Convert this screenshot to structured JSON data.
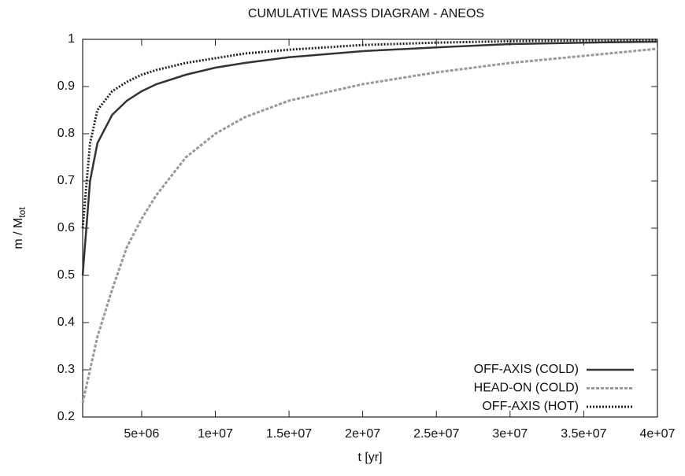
{
  "chart_data": {
    "type": "line",
    "title": "CUMULATIVE MASS DIAGRAM - ANEOS",
    "xlabel": "t [yr]",
    "ylabel": {
      "text": "m / M",
      "subscript": "tot"
    },
    "x": [
      1000000,
      1500000,
      2000000,
      3000000,
      4000000,
      5000000,
      6000000,
      8000000,
      10000000,
      12000000,
      15000000,
      20000000,
      25000000,
      30000000,
      35000000,
      40000000
    ],
    "series": [
      {
        "name": "OFF-AXIS (COLD)",
        "color": "#333333",
        "dash": "solid",
        "values": [
          0.5,
          0.7,
          0.78,
          0.84,
          0.87,
          0.89,
          0.905,
          0.925,
          0.94,
          0.95,
          0.962,
          0.975,
          0.983,
          0.99,
          0.993,
          0.995
        ]
      },
      {
        "name": "HEAD-ON (COLD)",
        "color": "#999999",
        "dash": "dashed",
        "values": [
          0.23,
          0.3,
          0.37,
          0.47,
          0.56,
          0.62,
          0.67,
          0.75,
          0.8,
          0.835,
          0.87,
          0.905,
          0.93,
          0.95,
          0.965,
          0.98
        ]
      },
      {
        "name": "OFF-AXIS (HOT)",
        "color": "#222222",
        "dash": "dotted",
        "values": [
          0.6,
          0.78,
          0.85,
          0.89,
          0.91,
          0.925,
          0.935,
          0.95,
          0.96,
          0.97,
          0.978,
          0.988,
          0.993,
          0.996,
          0.998,
          0.999
        ]
      }
    ],
    "xlim": [
      1000000,
      40000000
    ],
    "xticks": [
      {
        "value": 5000000,
        "label": "5e+06"
      },
      {
        "value": 10000000,
        "label": "1e+07"
      },
      {
        "value": 15000000,
        "label": "1.5e+07"
      },
      {
        "value": 20000000,
        "label": "2e+07"
      },
      {
        "value": 25000000,
        "label": "2.5e+07"
      },
      {
        "value": 30000000,
        "label": "3e+07"
      },
      {
        "value": 35000000,
        "label": "3.5e+07"
      },
      {
        "value": 40000000,
        "label": "4e+07"
      }
    ],
    "ylim": [
      0.2,
      1
    ],
    "yticks": [
      0.2,
      0.3,
      0.4,
      0.5,
      0.6,
      0.7,
      0.8,
      0.9,
      1
    ],
    "grid": false,
    "legend": "bottom-right"
  }
}
